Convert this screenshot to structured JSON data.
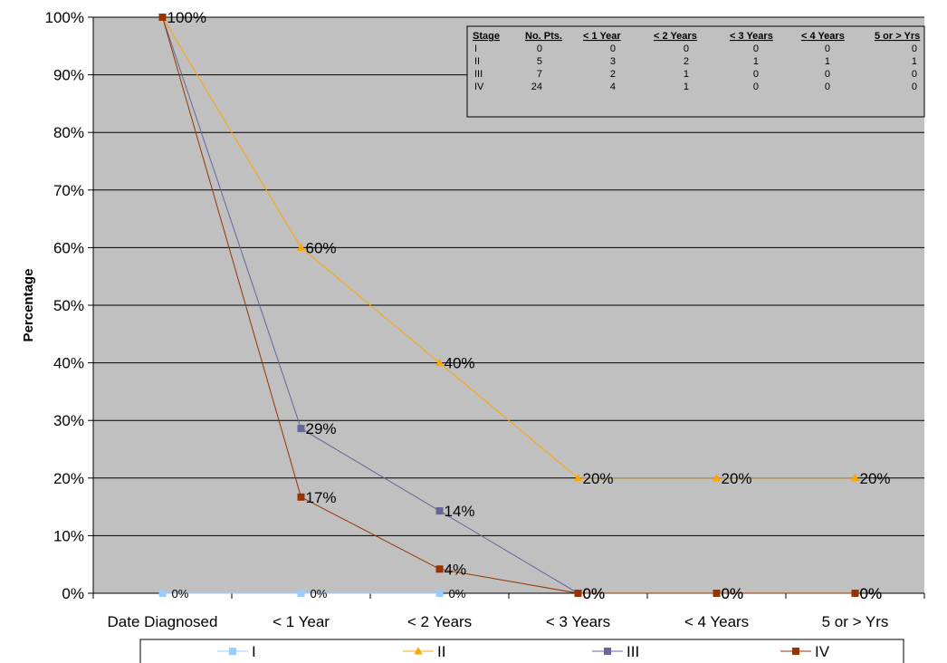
{
  "chart_data": {
    "type": "line",
    "title": "",
    "xlabel": "",
    "ylabel": "Percentage",
    "categories": [
      "Date Diagnosed",
      "< 1 Year",
      "< 2 Years",
      "< 3 Years",
      "< 4 Years",
      "5 or > Yrs"
    ],
    "yticks": [
      "0%",
      "10%",
      "20%",
      "30%",
      "40%",
      "50%",
      "60%",
      "70%",
      "80%",
      "90%",
      "100%"
    ],
    "ylim": [
      0,
      100
    ],
    "grid": true,
    "legend_position": "bottom",
    "plot_background": "#c0c0c0",
    "series": [
      {
        "name": "I",
        "color": "#99ccff",
        "marker": "square",
        "values": [
          0,
          0,
          0,
          null,
          null,
          null
        ],
        "labels": [
          "0%",
          "0%",
          "0%",
          "",
          "",
          ""
        ]
      },
      {
        "name": "II",
        "color": "#ffa500",
        "marker": "triangle",
        "values": [
          100,
          60,
          40,
          20,
          20,
          20
        ],
        "labels": [
          "",
          "60%",
          "40%",
          "20%",
          "20%",
          "20%"
        ]
      },
      {
        "name": "III",
        "color": "#666699",
        "marker": "square",
        "values": [
          100,
          28.6,
          14.3,
          0,
          0,
          0
        ],
        "labels": [
          "",
          "29%",
          "14%",
          "0%",
          "0%",
          "0%"
        ]
      },
      {
        "name": "IV",
        "color": "#993300",
        "marker": "square",
        "values": [
          100,
          16.7,
          4.2,
          0,
          0,
          0
        ],
        "labels": [
          "100%",
          "17%",
          "4%",
          "0%",
          "0%",
          "0%"
        ]
      }
    ],
    "data_table": {
      "headers": [
        "Stage",
        "No. Pts.",
        "< 1 Year",
        "< 2 Years",
        "< 3 Years",
        "< 4 Years",
        "5 or > Yrs"
      ],
      "rows": [
        [
          "I",
          "0",
          "0",
          "0",
          "0",
          "0",
          "0"
        ],
        [
          "II",
          "5",
          "3",
          "2",
          "1",
          "1",
          "1"
        ],
        [
          "III",
          "7",
          "2",
          "1",
          "0",
          "0",
          "0"
        ],
        [
          "IV",
          "24",
          "4",
          "1",
          "0",
          "0",
          "0"
        ]
      ]
    }
  }
}
